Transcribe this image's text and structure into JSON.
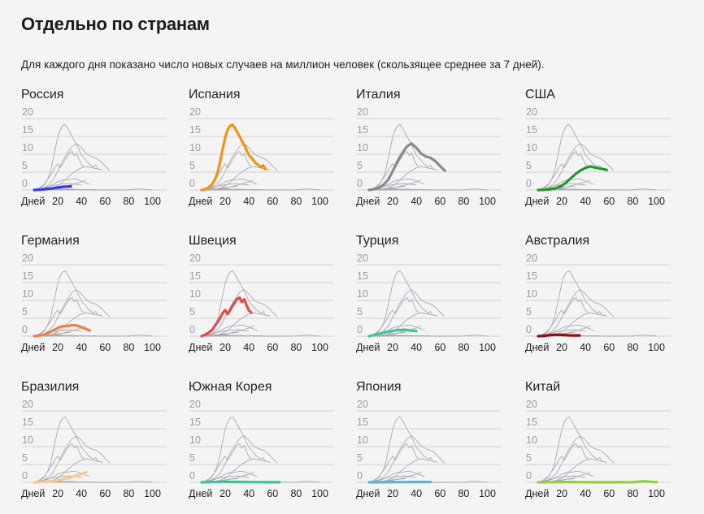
{
  "header": {
    "title": "Отдельно по странам",
    "subtitle": "Для каждого дня показано число новых случаев на миллион человек (скользящее среднее за 7 дней)."
  },
  "chart_data": {
    "type": "line",
    "layout": "small-multiples 3x4",
    "xlabel": "Дней",
    "ylabel": "",
    "x_ticks": [
      "20",
      "40",
      "60",
      "80",
      "100"
    ],
    "x_tick_values": [
      20,
      40,
      60,
      80,
      100
    ],
    "y_ticks": [
      "20",
      "15",
      "10",
      "5",
      "0"
    ],
    "y_tick_values": [
      20,
      15,
      10,
      5,
      0
    ],
    "xlim": [
      0,
      110
    ],
    "ylim": [
      0,
      20
    ],
    "grid": true,
    "background_series_color": "#a9a9b4",
    "series": [
      {
        "name": "Россия",
        "color": "#3b3bdc",
        "x": [
          0,
          5,
          10,
          15,
          20,
          25,
          31
        ],
        "values": [
          0,
          0.1,
          0.25,
          0.45,
          0.7,
          0.9,
          1.0
        ]
      },
      {
        "name": "Испания",
        "color": "#f29115",
        "x": [
          0,
          3,
          6,
          9,
          12,
          14,
          16,
          18,
          20,
          22,
          24,
          26,
          28,
          30,
          32,
          34,
          36,
          38,
          40,
          42,
          44,
          46,
          48,
          50,
          52,
          54
        ],
        "values": [
          0,
          0.2,
          0.7,
          1.6,
          3.5,
          5.5,
          8.5,
          11.8,
          14.8,
          16.8,
          17.9,
          18.3,
          17.5,
          16.2,
          15.0,
          13.8,
          12.6,
          11.2,
          9.8,
          9.1,
          8.3,
          7.4,
          7.0,
          6.4,
          6.9,
          5.8
        ]
      },
      {
        "name": "Италия",
        "color": "#8a8a8a",
        "x": [
          0,
          4,
          8,
          12,
          16,
          20,
          24,
          28,
          32,
          36,
          40,
          44,
          48,
          52,
          56,
          60,
          64
        ],
        "values": [
          0,
          0.2,
          0.6,
          1.4,
          2.8,
          5.3,
          8.0,
          10.3,
          12.2,
          13.0,
          11.8,
          10.2,
          9.4,
          9.0,
          8.1,
          6.7,
          5.4
        ]
      },
      {
        "name": "США",
        "color": "#1a9a2a",
        "x": [
          0,
          5,
          10,
          15,
          20,
          24,
          28,
          32,
          36,
          40,
          44,
          48,
          52,
          56,
          58
        ],
        "values": [
          0,
          0.05,
          0.2,
          0.5,
          1.2,
          2.2,
          3.4,
          4.6,
          5.5,
          6.2,
          6.6,
          6.3,
          6.0,
          5.8,
          5.6
        ]
      },
      {
        "name": "Германия",
        "color": "#f07c4a",
        "x": [
          0,
          4,
          8,
          12,
          16,
          20,
          24,
          28,
          32,
          36,
          40,
          44,
          47
        ],
        "values": [
          0,
          0.15,
          0.4,
          0.9,
          1.6,
          2.3,
          2.8,
          2.8,
          3.1,
          3.0,
          2.5,
          2.0,
          1.6
        ]
      },
      {
        "name": "Швеция",
        "color": "#e84848",
        "x": [
          0,
          3,
          6,
          9,
          12,
          15,
          18,
          20,
          22,
          24,
          26,
          28,
          30,
          32,
          34,
          36,
          38,
          40,
          42
        ],
        "values": [
          0,
          0.4,
          1.0,
          1.8,
          3.3,
          4.7,
          6.6,
          7.3,
          6.2,
          7.2,
          8.4,
          9.4,
          10.4,
          10.8,
          9.6,
          10.3,
          8.6,
          7.2,
          6.6
        ]
      },
      {
        "name": "Турция",
        "color": "#3cc79a",
        "x": [
          0,
          5,
          10,
          15,
          20,
          25,
          30,
          35,
          40
        ],
        "values": [
          0,
          0.4,
          0.8,
          1.2,
          1.5,
          1.7,
          1.8,
          1.6,
          1.4
        ]
      },
      {
        "name": "Австралия",
        "color": "#8b0f0f",
        "x": [
          0,
          5,
          10,
          15,
          20,
          25,
          30,
          35
        ],
        "values": [
          0,
          0.1,
          0.3,
          0.4,
          0.35,
          0.25,
          0.2,
          0.2
        ]
      },
      {
        "name": "Бразилия",
        "color": "#f7c98d",
        "x": [
          0,
          5,
          10,
          15,
          20,
          25,
          30,
          35,
          40,
          44
        ],
        "values": [
          0,
          0.05,
          0.15,
          0.35,
          0.6,
          0.95,
          1.35,
          1.8,
          2.3,
          2.8
        ]
      },
      {
        "name": "Южная Корея",
        "color": "#3ec49c",
        "x": [
          0,
          10,
          20,
          30,
          40,
          50,
          60,
          66
        ],
        "values": [
          0,
          0.1,
          0.15,
          0.12,
          0.1,
          0.05,
          0.03,
          0.02
        ]
      },
      {
        "name": "Япония",
        "color": "#5bb3dc",
        "x": [
          0,
          10,
          20,
          30,
          40,
          50,
          52
        ],
        "values": [
          0,
          0.02,
          0.04,
          0.06,
          0.08,
          0.1,
          0.1
        ]
      },
      {
        "name": "Китай",
        "color": "#8fd13c",
        "x": [
          0,
          10,
          20,
          30,
          40,
          50,
          60,
          70,
          80,
          85,
          90,
          95,
          100
        ],
        "values": [
          0,
          0.05,
          0.08,
          0.06,
          0.04,
          0.03,
          0.02,
          0.02,
          0.05,
          0.2,
          0.3,
          0.15,
          0.05
        ]
      }
    ]
  }
}
